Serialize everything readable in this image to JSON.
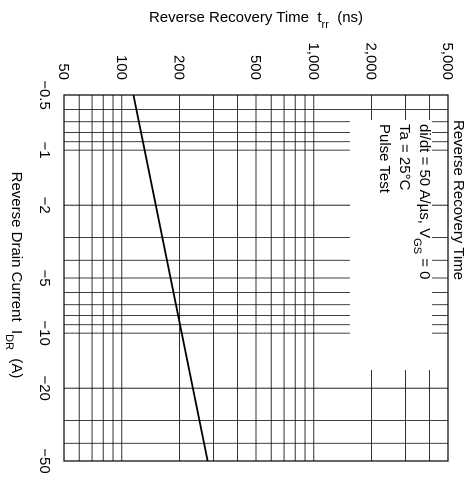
{
  "chart_data": {
    "type": "line",
    "title": "Reverse Recovery Time",
    "ylabel": [
      "Reverse Recovery Time  t",
      "rr",
      "  (ns)"
    ],
    "xlabel": [
      "Reverse Drain Current  I",
      "DR",
      "  (A)"
    ],
    "annotations": [
      [
        "di/dt = 50 A/µs, V",
        "GS",
        " = 0"
      ],
      [
        "Ta = 25°C"
      ],
      [
        "Pulse Test"
      ]
    ],
    "x": [
      -0.5,
      -50
    ],
    "values": [
      115,
      280
    ],
    "color": "#000000",
    "xscale": "log",
    "yscale": "log",
    "xlim": [
      -0.5,
      -50
    ],
    "ylim": [
      50,
      5000
    ],
    "xticks": [
      {
        "value": -0.5,
        "label": "−0.5"
      },
      {
        "value": -1,
        "label": "−1"
      },
      {
        "value": -2,
        "label": "−2"
      },
      {
        "value": -5,
        "label": "−5"
      },
      {
        "value": -10,
        "label": "−10"
      },
      {
        "value": -20,
        "label": "−20"
      },
      {
        "value": -50,
        "label": "−50"
      }
    ],
    "yticks": [
      50,
      100,
      200,
      500,
      {
        "value": 1000,
        "label": "1,000"
      },
      {
        "value": 2000,
        "label": "2,000"
      },
      {
        "value": 5000,
        "label": "5,000"
      }
    ],
    "xminorticks": [
      -0.6,
      -0.7,
      -0.8,
      -0.9,
      -3,
      -4,
      -6,
      -7,
      -8,
      -9,
      -30,
      -40
    ],
    "yminorticks": [
      60,
      70,
      80,
      90,
      300,
      400,
      600,
      700,
      800,
      900,
      3000,
      4000
    ],
    "grid": true
  }
}
